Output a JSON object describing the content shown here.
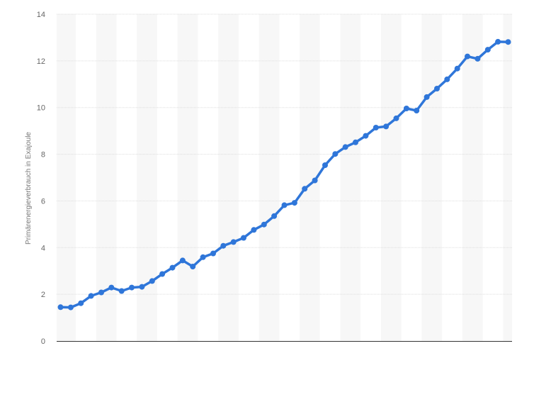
{
  "chart_data": {
    "type": "line",
    "title": "",
    "xlabel": "",
    "ylabel": "Primärenergieverbrauch in Exajoule",
    "ylim": [
      0,
      14
    ],
    "y_ticks": [
      0,
      2,
      4,
      6,
      8,
      10,
      12,
      14
    ],
    "y_tick_labels": [
      "0",
      "2",
      "4",
      "6",
      "8",
      "10",
      "12",
      "14"
    ],
    "grid": true,
    "legend": "none",
    "colors": {
      "line": "#2f76d9",
      "grid": "#dddddd",
      "band": "#f7f7f7",
      "axis": "#333333"
    },
    "series": [
      {
        "values": [
          1.45,
          1.44,
          1.62,
          1.93,
          2.08,
          2.29,
          2.14,
          2.29,
          2.32,
          2.57,
          2.87,
          3.14,
          3.45,
          3.19,
          3.59,
          3.75,
          4.08,
          4.24,
          4.42,
          4.76,
          4.99,
          5.35,
          5.82,
          5.92,
          6.52,
          6.88,
          7.53,
          8.01,
          8.31,
          8.51,
          8.79,
          9.14,
          9.19,
          9.54,
          9.96,
          9.87,
          10.45,
          10.81,
          11.21,
          11.67,
          12.19,
          12.09,
          12.48,
          12.82,
          12.81
        ]
      }
    ]
  }
}
